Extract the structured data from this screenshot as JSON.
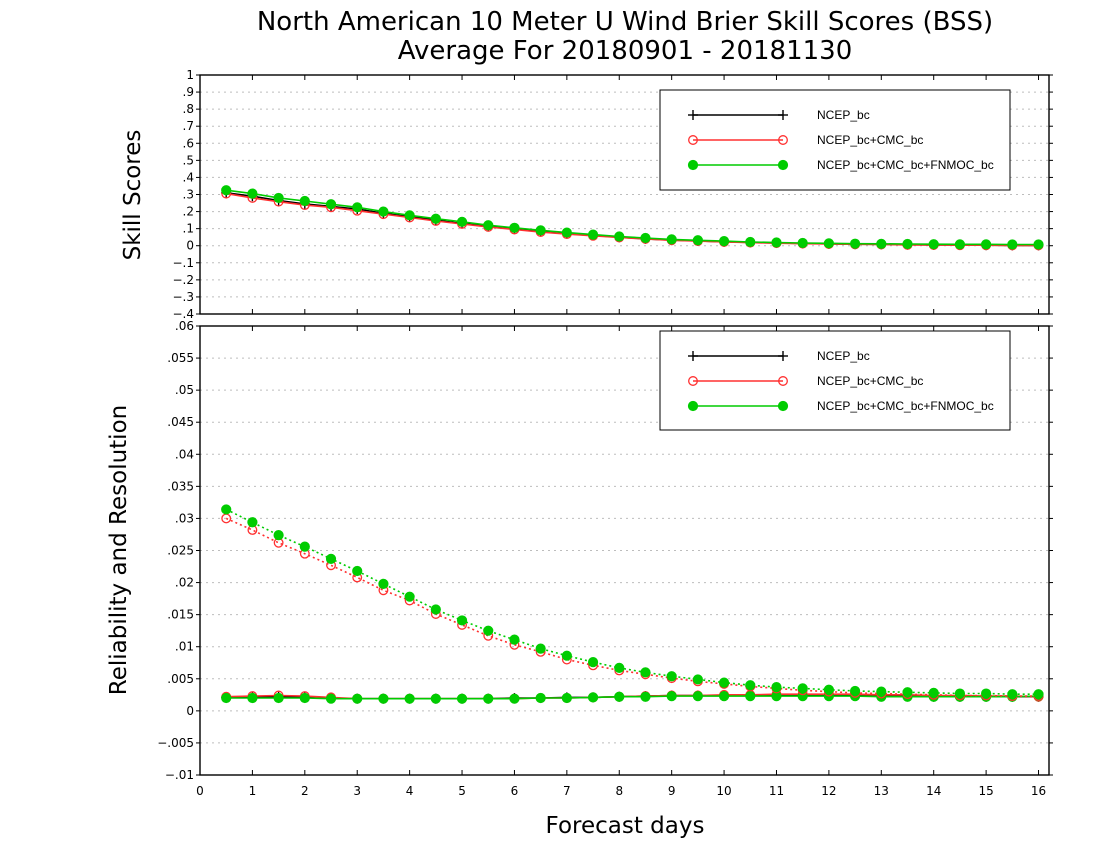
{
  "title_line1": "North American 10 Meter U Wind Brier Skill Scores (BSS)",
  "title_line2": "Average For 20180901 - 20181130",
  "chart_data": [
    {
      "type": "line",
      "ylabel": "Skill Scores",
      "ylim": [
        -0.4,
        1
      ],
      "yticks": [
        -0.4,
        -0.3,
        -0.2,
        -0.1,
        0,
        0.1,
        0.2,
        0.3,
        0.4,
        0.5,
        0.6,
        0.7,
        0.8,
        0.9,
        1
      ],
      "xlim": [
        0,
        16.2
      ],
      "grid": true,
      "legend": "top-right",
      "x": [
        0.5,
        1,
        1.5,
        2,
        2.5,
        3,
        3.5,
        4,
        4.5,
        5,
        5.5,
        6,
        6.5,
        7,
        7.5,
        8,
        8.5,
        9,
        9.5,
        10,
        10.5,
        11,
        11.5,
        12,
        12.5,
        13,
        13.5,
        14,
        14.5,
        15,
        15.5,
        16
      ],
      "series": [
        {
          "name": "NCEP_bc",
          "color": "#000000",
          "marker": "plus",
          "style": "solid",
          "values": [
            0.31,
            0.29,
            0.265,
            0.245,
            0.23,
            0.215,
            0.19,
            0.17,
            0.15,
            0.13,
            0.115,
            0.1,
            0.085,
            0.07,
            0.06,
            0.05,
            0.04,
            0.033,
            0.028,
            0.023,
            0.019,
            0.016,
            0.013,
            0.011,
            0.009,
            0.008,
            0.006,
            0.005,
            0.004,
            0.003,
            0.002,
            0.002
          ]
        },
        {
          "name": "NCEP_bc+CMC_bc",
          "color": "#ff3030",
          "marker": "circle-open",
          "style": "solid",
          "values": [
            0.305,
            0.28,
            0.258,
            0.238,
            0.225,
            0.205,
            0.185,
            0.165,
            0.145,
            0.128,
            0.11,
            0.095,
            0.08,
            0.068,
            0.058,
            0.048,
            0.04,
            0.032,
            0.027,
            0.022,
            0.018,
            0.015,
            0.012,
            0.01,
            0.008,
            0.007,
            0.005,
            0.004,
            0.003,
            0.003,
            0.002,
            0.002
          ]
        },
        {
          "name": "NCEP_bc+CMC_bc+FNMOC_bc",
          "color": "#00cc00",
          "marker": "circle-filled",
          "style": "solid",
          "values": [
            0.325,
            0.305,
            0.28,
            0.262,
            0.243,
            0.225,
            0.2,
            0.178,
            0.158,
            0.14,
            0.12,
            0.105,
            0.09,
            0.077,
            0.065,
            0.054,
            0.045,
            0.037,
            0.032,
            0.027,
            0.022,
            0.019,
            0.016,
            0.014,
            0.012,
            0.011,
            0.01,
            0.009,
            0.008,
            0.008,
            0.007,
            0.007
          ]
        }
      ]
    },
    {
      "type": "line",
      "ylabel": "Reliability and Resolution",
      "ylim": [
        -0.01,
        0.06
      ],
      "yticks": [
        -0.01,
        -0.005,
        0,
        0.005,
        0.01,
        0.015,
        0.02,
        0.025,
        0.03,
        0.035,
        0.04,
        0.045,
        0.05,
        0.055,
        0.06
      ],
      "xlabel": "Forecast days",
      "xlim": [
        0,
        16.2
      ],
      "xticks": [
        0,
        1,
        2,
        3,
        4,
        5,
        6,
        7,
        8,
        9,
        10,
        11,
        12,
        13,
        14,
        15,
        16
      ],
      "grid": true,
      "legend": "top-right",
      "x": [
        0.5,
        1,
        1.5,
        2,
        2.5,
        3,
        3.5,
        4,
        4.5,
        5,
        5.5,
        6,
        6.5,
        7,
        7.5,
        8,
        8.5,
        9,
        9.5,
        10,
        10.5,
        11,
        11.5,
        12,
        12.5,
        13,
        13.5,
        14,
        14.5,
        15,
        15.5,
        16
      ],
      "series": [
        {
          "name": "NCEP_bc",
          "color": "#000000",
          "marker": "plus",
          "style": "solid",
          "values": [
            0.0021,
            0.0022,
            0.0022,
            0.0021,
            0.002,
            0.0019,
            0.0019,
            0.0019,
            0.0019,
            0.0019,
            0.0019,
            0.002,
            0.002,
            0.0021,
            0.0021,
            0.0022,
            0.0023,
            0.0024,
            0.0024,
            0.0024,
            0.0024,
            0.0024,
            0.0024,
            0.0024,
            0.0024,
            0.0023,
            0.0023,
            0.0022,
            0.0022,
            0.0022,
            0.0022,
            0.0022
          ]
        },
        {
          "name": "NCEP_bc+CMC_bc",
          "color": "#ff3030",
          "marker": "circle-open",
          "style": "solid",
          "values": [
            0.0022,
            0.0023,
            0.0024,
            0.0023,
            0.0021,
            0.0019,
            0.0019,
            0.0019,
            0.0019,
            0.0019,
            0.0019,
            0.0019,
            0.002,
            0.002,
            0.0021,
            0.0022,
            0.0023,
            0.0024,
            0.0024,
            0.0025,
            0.0025,
            0.0026,
            0.0026,
            0.0026,
            0.0026,
            0.0025,
            0.0025,
            0.0024,
            0.0024,
            0.0023,
            0.0023,
            0.0022
          ]
        },
        {
          "name": "NCEP_bc+CMC_bc+FNMOC_bc",
          "color": "#00cc00",
          "marker": "circle-filled",
          "style": "solid",
          "values": [
            0.002,
            0.002,
            0.002,
            0.002,
            0.0019,
            0.0019,
            0.0019,
            0.0019,
            0.0019,
            0.0019,
            0.0019,
            0.0019,
            0.002,
            0.002,
            0.0021,
            0.0022,
            0.0022,
            0.0023,
            0.0023,
            0.0023,
            0.0023,
            0.0023,
            0.0023,
            0.0023,
            0.0023,
            0.0022,
            0.0022,
            0.0022,
            0.0022,
            0.0022,
            0.0022,
            0.0023
          ]
        },
        {
          "name": "",
          "legend": false,
          "color": "#ff3030",
          "marker": "circle-open",
          "style": "dotted",
          "values": [
            0.03,
            0.0282,
            0.0262,
            0.0245,
            0.0227,
            0.0208,
            0.0188,
            0.0172,
            0.0151,
            0.0134,
            0.0117,
            0.0103,
            0.0092,
            0.008,
            0.0071,
            0.0063,
            0.0057,
            0.0051,
            0.0046,
            0.0042,
            0.0038,
            0.0035,
            0.0032,
            0.003,
            0.0028,
            0.0027,
            0.0026,
            0.0025,
            0.0024,
            0.0024,
            0.0023,
            0.0023
          ]
        },
        {
          "name": "",
          "legend": false,
          "color": "#00cc00",
          "marker": "circle-filled",
          "style": "dotted",
          "values": [
            0.0314,
            0.0294,
            0.0274,
            0.0256,
            0.0237,
            0.0218,
            0.0198,
            0.0178,
            0.0158,
            0.0141,
            0.0125,
            0.0111,
            0.0097,
            0.0086,
            0.0076,
            0.0067,
            0.006,
            0.0054,
            0.0049,
            0.0044,
            0.004,
            0.0037,
            0.0035,
            0.0033,
            0.0031,
            0.003,
            0.0029,
            0.0028,
            0.0027,
            0.0027,
            0.0026,
            0.0026
          ]
        }
      ]
    }
  ]
}
